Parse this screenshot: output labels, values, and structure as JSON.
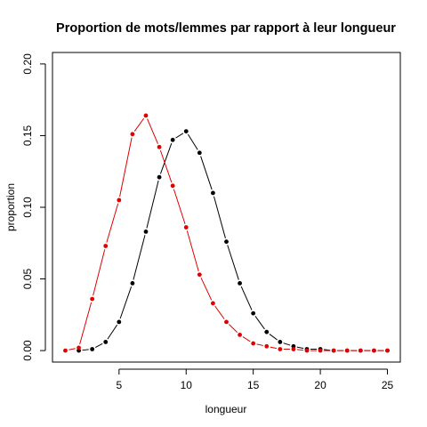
{
  "chart_data": {
    "type": "line",
    "title": "Proportion de mots/lemmes par rapport à leur longueur",
    "xlabel": "longueur",
    "ylabel": "proportion",
    "xlim": [
      0.04,
      25.96
    ],
    "ylim": [
      -0.008,
      0.208
    ],
    "xticks": [
      5,
      10,
      15,
      20,
      25
    ],
    "yticks": [
      0.0,
      0.05,
      0.1,
      0.15,
      0.2
    ],
    "ytick_labels": [
      "0.00",
      "0.05",
      "0.10",
      "0.15",
      "0.20"
    ],
    "grid": false,
    "series": [
      {
        "color": "#000000",
        "x": [
          2,
          3,
          4,
          5,
          6,
          7,
          8,
          9,
          10,
          11,
          12,
          13,
          14,
          15,
          16,
          17,
          18,
          19,
          20,
          21,
          22,
          23,
          24,
          25
        ],
        "values": [
          0.0,
          0.001,
          0.006,
          0.02,
          0.047,
          0.083,
          0.121,
          0.147,
          0.153,
          0.138,
          0.11,
          0.076,
          0.047,
          0.026,
          0.013,
          0.006,
          0.003,
          0.001,
          0.001,
          0.0,
          0.0,
          0.0,
          0.0,
          0.0
        ]
      },
      {
        "color": "#e00000",
        "x": [
          1,
          2,
          3,
          4,
          5,
          6,
          7,
          8,
          9,
          10,
          11,
          12,
          13,
          14,
          15,
          16,
          17,
          18,
          19,
          20,
          21,
          22,
          23,
          24,
          25
        ],
        "values": [
          0.0,
          0.002,
          0.036,
          0.073,
          0.105,
          0.151,
          0.164,
          0.142,
          0.115,
          0.086,
          0.053,
          0.033,
          0.02,
          0.011,
          0.005,
          0.003,
          0.001,
          0.001,
          0.0,
          0.0,
          0.0,
          0.0,
          0.0,
          0.0,
          0.0
        ]
      }
    ]
  }
}
